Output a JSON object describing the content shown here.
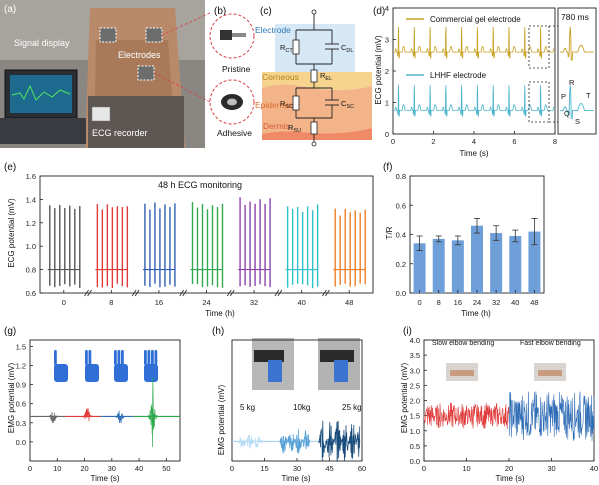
{
  "panels": {
    "a": {
      "label": "(a)",
      "labels": [
        "Signal display",
        "Electrodes",
        "ECG recorder"
      ]
    },
    "b": {
      "label": "(b)",
      "labels": [
        "Pristine",
        "Adhesive"
      ]
    },
    "c": {
      "label": "(c)",
      "regions": [
        "Electrode",
        "Corneous",
        "Epidermis",
        "Dermis"
      ],
      "components": [
        "R",
        "CT",
        "C",
        "DL",
        "R",
        "EL",
        "R",
        "SC",
        "C",
        "SC",
        "R",
        "SU"
      ]
    },
    "d": {
      "label": "(d)",
      "callout": "780 ms",
      "peak_labels": [
        "P",
        "Q",
        "R",
        "S",
        "T"
      ]
    },
    "e": {
      "label": "(e)"
    },
    "f": {
      "label": "(f)"
    },
    "g": {
      "label": "(g)"
    },
    "h": {
      "label": "(h)"
    },
    "i": {
      "label": "(i)"
    }
  },
  "colors": {
    "commercial": "#c9a227",
    "lhhf": "#4bb3cc",
    "emg_red": "#e03a3a",
    "emg_blue": "#2f6db5",
    "emg_green": "#2aa84a",
    "emg_gray": "#666666",
    "bar": "#6f9fd8",
    "hand_blue": "#2f6fd6",
    "e_series": [
      "#555555",
      "#e03a3a",
      "#2f5fb5",
      "#2fa84f",
      "#8e44ad",
      "#2cc0c9",
      "#f07f23"
    ]
  },
  "chart_data": [
    {
      "panel": "d",
      "type": "line",
      "xlabel": "Time (s)",
      "ylabel": "ECG potential (mV)",
      "xlim": [
        0,
        8
      ],
      "ylim": [
        0,
        4
      ],
      "xticks": [
        0,
        2,
        4,
        6,
        8
      ],
      "yticks": [
        0,
        1,
        2,
        3,
        4
      ],
      "beat_interval_s": 0.78,
      "series": [
        {
          "name": "Commercial gel electrode",
          "baseline": 2.6,
          "peak": 3.4
        },
        {
          "name": "LHHF electrode",
          "baseline": 0.75,
          "peak": 1.55
        }
      ]
    },
    {
      "panel": "e",
      "type": "line",
      "title": "48 h ECG monitoring",
      "xlabel": "Time (h)",
      "ylabel": "ECG potential (mV)",
      "categories": [
        "0",
        "8",
        "16",
        "24",
        "32",
        "40",
        "48"
      ],
      "ylim": [
        0.6,
        1.6
      ],
      "yticks": [
        0.6,
        0.8,
        1.0,
        1.2,
        1.4,
        1.6
      ],
      "baseline": 0.8,
      "peak_max": [
        1.37,
        1.38,
        1.38,
        1.38,
        1.42,
        1.37,
        1.33
      ],
      "trough_min": [
        0.64,
        0.64,
        0.64,
        0.64,
        0.64,
        0.64,
        0.64
      ]
    },
    {
      "panel": "f",
      "type": "bar",
      "xlabel": "Time (h)",
      "ylabel": "T/R",
      "categories": [
        "0",
        "8",
        "16",
        "24",
        "32",
        "40",
        "48"
      ],
      "values": [
        0.34,
        0.37,
        0.36,
        0.46,
        0.41,
        0.39,
        0.42
      ],
      "errors": [
        0.05,
        0.02,
        0.03,
        0.05,
        0.05,
        0.04,
        0.09
      ],
      "ylim": [
        0,
        0.8
      ],
      "yticks": [
        0.0,
        0.2,
        0.4,
        0.6,
        0.8
      ]
    },
    {
      "panel": "g",
      "type": "line",
      "xlabel": "Time (s)",
      "ylabel": "EMG potential (mV)",
      "xlim": [
        0,
        55
      ],
      "ylim": [
        -0.3,
        1.6
      ],
      "xticks": [
        0,
        10,
        20,
        30,
        40,
        50
      ],
      "yticks": [
        0.0,
        0.3,
        0.6,
        0.9,
        1.2,
        1.5
      ],
      "baseline": 0.4,
      "bursts": [
        {
          "t": 8.5,
          "amp": 0.12
        },
        {
          "t": 21.0,
          "amp": 0.15
        },
        {
          "t": 33.0,
          "amp": 0.13
        },
        {
          "t": 45.0,
          "amp": 0.33
        }
      ]
    },
    {
      "panel": "h",
      "type": "line",
      "xlabel": "Time (s)",
      "ylabel": "EMG potential (mV)",
      "xlim": [
        0,
        60
      ],
      "ylim": [
        0.6,
        1.4
      ],
      "xticks": [
        0,
        15,
        30,
        45,
        60
      ],
      "annotations": [
        "5 kg",
        "10kg",
        "25 kg"
      ],
      "baseline": 0.73,
      "groups": [
        {
          "start": 3,
          "end": 14,
          "amp": 0.05
        },
        {
          "start": 22,
          "end": 36,
          "amp": 0.08
        },
        {
          "start": 40,
          "end": 59,
          "amp": 0.14
        }
      ]
    },
    {
      "panel": "i",
      "type": "line",
      "xlabel": "Time (s)",
      "ylabel": "EMG potential (mV)",
      "xlim": [
        0,
        40
      ],
      "ylim": [
        0,
        4.0
      ],
      "xticks": [
        0,
        10,
        20,
        30,
        40
      ],
      "yticks": [
        0.0,
        0.5,
        1.0,
        1.5,
        2.0,
        2.5,
        3.0,
        3.5,
        4.0
      ],
      "annotations": [
        "Slow elbow bending",
        "Fast elbow bending"
      ],
      "baseline": 1.5,
      "slow_amp": 0.45,
      "fast_amp": 0.85,
      "switch_t": 20
    }
  ]
}
